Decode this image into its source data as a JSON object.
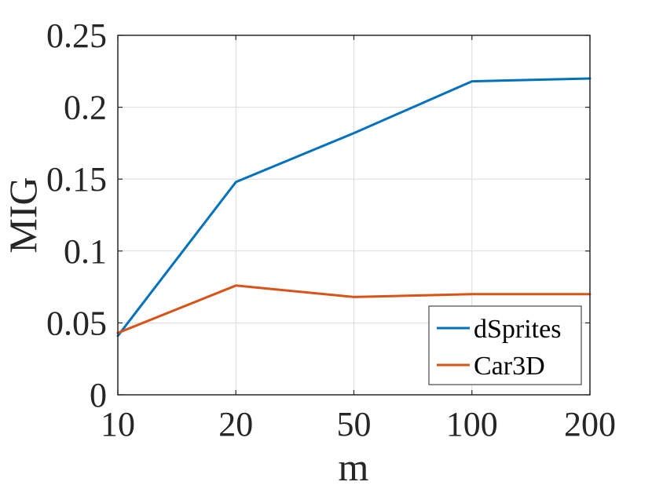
{
  "chart_data": {
    "type": "line",
    "title": "",
    "xlabel": "m",
    "ylabel": "MIG",
    "x": [
      "10",
      "20",
      "50",
      "100",
      "200"
    ],
    "ylim": [
      0,
      0.25
    ],
    "yticks": [
      "0",
      "0.05",
      "0.1",
      "0.15",
      "0.2",
      "0.25"
    ],
    "ytick_values": [
      0,
      0.05,
      0.1,
      0.15,
      0.2,
      0.25
    ],
    "grid": true,
    "legend_position": "bottom-right",
    "series": [
      {
        "name": "dSprites",
        "color": "#0072BD",
        "values": [
          0.041,
          0.148,
          0.182,
          0.218,
          0.22
        ]
      },
      {
        "name": "Car3D",
        "color": "#D95319",
        "values": [
          0.043,
          0.076,
          0.068,
          0.07,
          0.07
        ]
      }
    ]
  }
}
